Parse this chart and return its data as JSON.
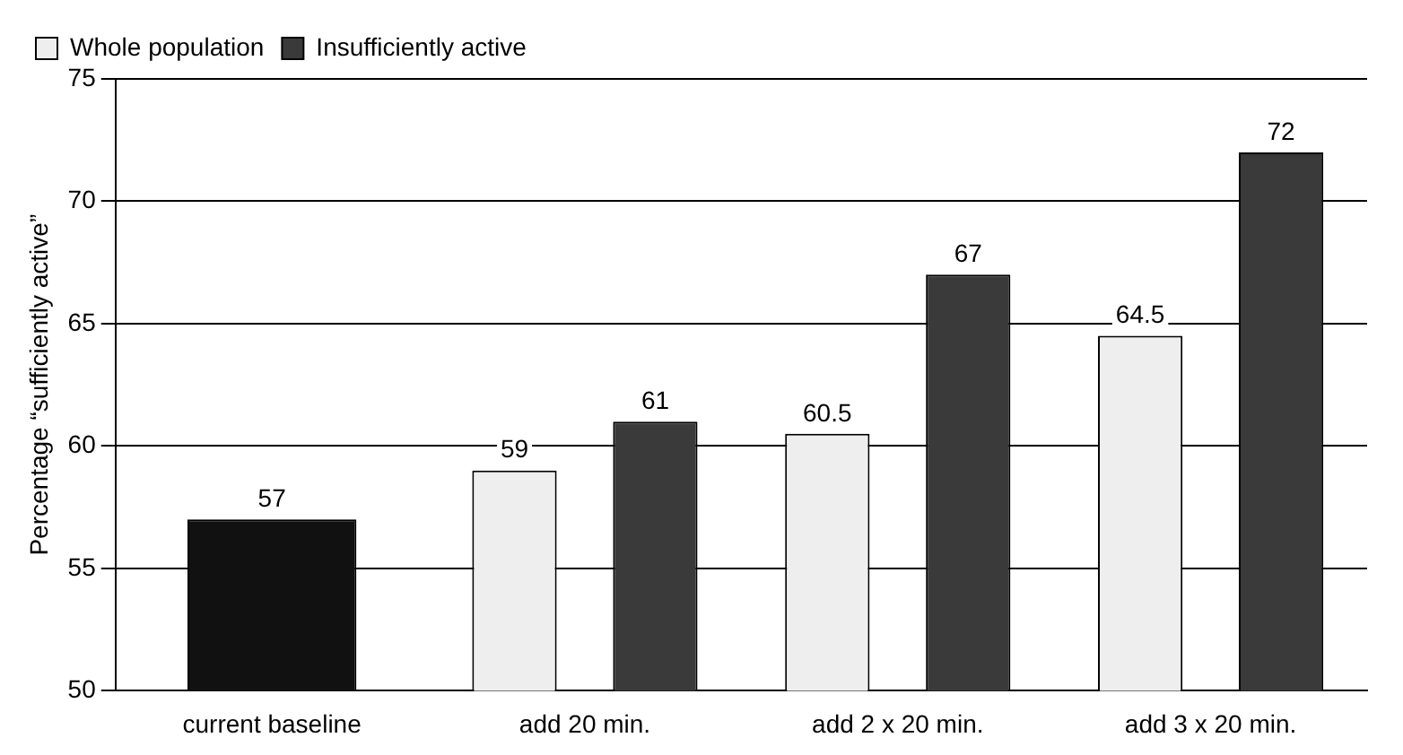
{
  "chart_data": {
    "type": "bar",
    "ylabel": "Percentage “sufficiently active”",
    "categories": [
      "current baseline",
      "add 20 min.",
      "add 2 x 20 min.",
      "add 3 x 20 min."
    ],
    "series": [
      {
        "name": "Whole population",
        "color": "#eeeeee",
        "values": [
          null,
          59,
          60.5,
          64.5
        ]
      },
      {
        "name": "Insufficiently active",
        "color": "#3a3a3a",
        "values": [
          null,
          61,
          67,
          72
        ]
      },
      {
        "color": "#111111",
        "values": [
          57,
          null,
          null,
          null
        ]
      }
    ],
    "ylim": [
      50,
      75
    ],
    "yticks": [
      50,
      55,
      60,
      65,
      70,
      75
    ],
    "grid": "y",
    "legend": "top left",
    "data_labels": true
  }
}
